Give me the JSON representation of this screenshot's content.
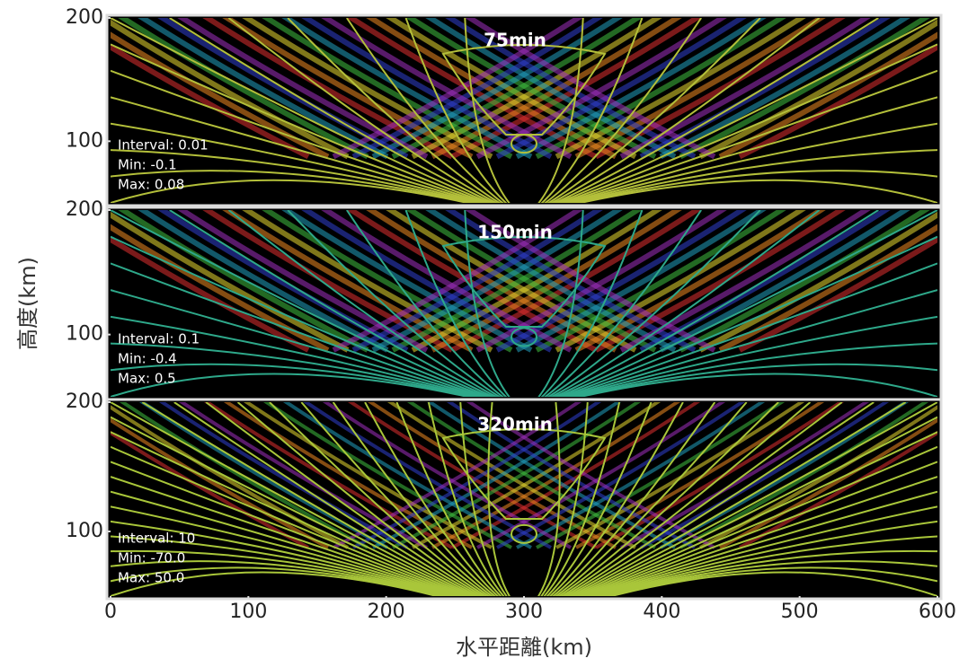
{
  "chart_data": [
    {
      "type": "contour",
      "title": "75min",
      "annotations": [
        "Interval: 0.01",
        "Min: -0.1",
        "Max: 0.08"
      ],
      "xlim": [
        0,
        600
      ],
      "ylim": [
        50,
        200
      ],
      "yticks": [
        100,
        200
      ],
      "line_color": "#b3bf3a"
    },
    {
      "type": "contour",
      "title": "150min",
      "annotations": [
        "Interval: 0.1",
        "Min: -0.4",
        "Max: 0.5"
      ],
      "xlim": [
        0,
        600
      ],
      "ylim": [
        50,
        200
      ],
      "yticks": [
        100,
        200
      ],
      "line_color": "#2ea88a",
      "ylabel": "高度(km)"
    },
    {
      "type": "contour",
      "title": "320min",
      "annotations": [
        "Interval: 10",
        "Min: -70.0",
        "Max: 50.0"
      ],
      "xlim": [
        0,
        600
      ],
      "ylim": [
        50,
        200
      ],
      "yticks": [
        100,
        200
      ],
      "line_color": "#a9c63a",
      "xticks": [
        0,
        100,
        200,
        300,
        400,
        500,
        600
      ],
      "xlabel": "水平距離(km)"
    }
  ]
}
